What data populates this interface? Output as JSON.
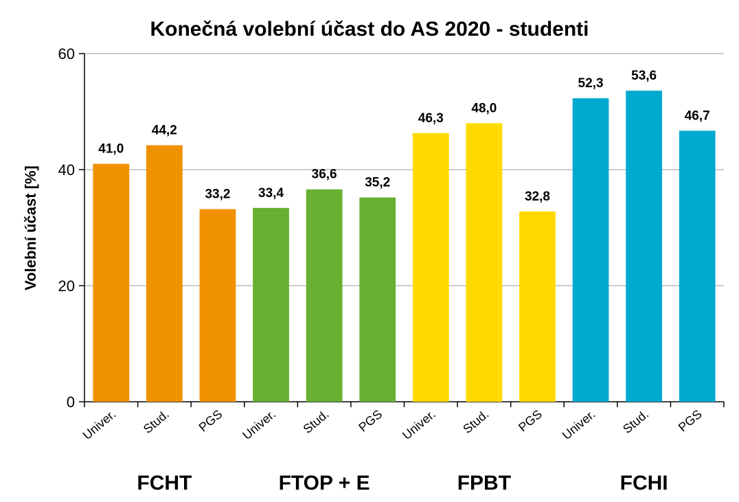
{
  "chart_data": {
    "type": "bar",
    "title": "Konečná volební účast do AS 2020 - studenti",
    "ylabel": "Volební účast [%]",
    "ylim": [
      0,
      60
    ],
    "yticks": [
      0,
      20,
      40,
      60
    ],
    "grid": true,
    "groups": [
      {
        "name": "FCHT",
        "color": "#F09100",
        "categories": [
          "Univer.",
          "Stud.",
          "PGS"
        ],
        "values": [
          41.0,
          44.2,
          33.2
        ],
        "labels": [
          "41,0",
          "44,2",
          "33,2"
        ]
      },
      {
        "name": "FTOP + E",
        "color": "#67B032",
        "categories": [
          "Univer.",
          "Stud.",
          "PGS"
        ],
        "values": [
          33.4,
          36.6,
          35.2
        ],
        "labels": [
          "33,4",
          "36,6",
          "35,2"
        ]
      },
      {
        "name": "FPBT",
        "color": "#FFDA00",
        "categories": [
          "Univer.",
          "Stud.",
          "PGS"
        ],
        "values": [
          46.3,
          48.0,
          32.8
        ],
        "labels": [
          "46,3",
          "48,0",
          "32,8"
        ]
      },
      {
        "name": "FCHI",
        "color": "#00AACF",
        "categories": [
          "Univer.",
          "Stud.",
          "PGS"
        ],
        "values": [
          52.3,
          53.6,
          46.7
        ],
        "labels": [
          "52,3",
          "53,6",
          "46,7"
        ]
      }
    ]
  }
}
